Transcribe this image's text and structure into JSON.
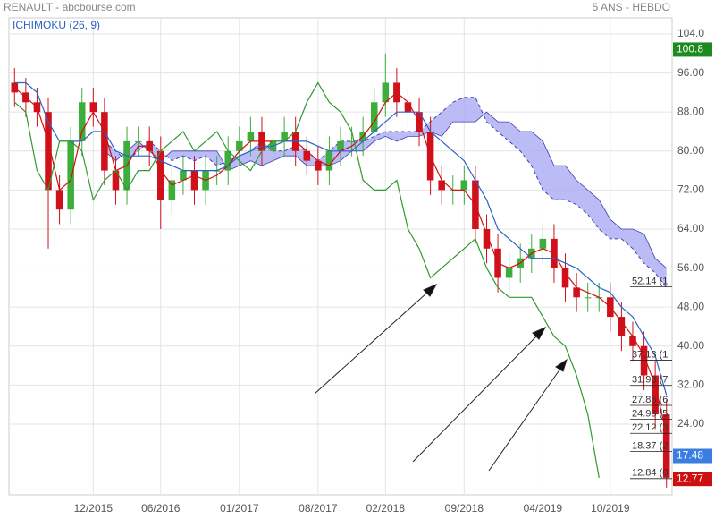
{
  "chart_data": {
    "type": "candlestick",
    "title": "RENAULT - abcbourse.com",
    "subtitle": "5 ANS - HEBDO",
    "indicator": "ICHIMOKU (26, 9)",
    "categories": [
      null,
      null,
      null,
      null,
      null,
      null,
      null,
      "12/2015",
      null,
      null,
      null,
      null,
      null,
      "06/2016",
      null,
      null,
      null,
      null,
      null,
      null,
      "01/2017",
      null,
      null,
      null,
      null,
      null,
      null,
      "08/2017",
      null,
      null,
      null,
      null,
      null,
      "02/2018",
      null,
      null,
      null,
      null,
      null,
      null,
      "09/2018",
      null,
      null,
      null,
      null,
      null,
      null,
      "04/2019",
      null,
      null,
      null,
      null,
      null,
      "10/2019",
      null,
      null,
      null,
      null,
      null
    ],
    "open": [
      94,
      92,
      90,
      88,
      72,
      68,
      82,
      90,
      88,
      76,
      72,
      82,
      82,
      80,
      70,
      74,
      76,
      72,
      76,
      76,
      80,
      82,
      84,
      80,
      82,
      84,
      80,
      78,
      76,
      80,
      82,
      82,
      84,
      90,
      94,
      90,
      88,
      84,
      74,
      72,
      72,
      74,
      64,
      60,
      54,
      56,
      58,
      60,
      62,
      56,
      52,
      50,
      50,
      50,
      46,
      42,
      40,
      34,
      26
    ],
    "high": [
      97,
      95,
      93,
      91,
      75,
      85,
      93,
      93,
      91,
      79,
      85,
      85,
      85,
      83,
      77,
      79,
      79,
      79,
      79,
      83,
      85,
      87,
      87,
      85,
      87,
      87,
      83,
      81,
      83,
      85,
      85,
      87,
      93,
      100,
      97,
      93,
      91,
      87,
      77,
      75,
      77,
      77,
      67,
      63,
      59,
      61,
      63,
      65,
      65,
      59,
      55,
      53,
      53,
      53,
      49,
      45,
      43,
      37,
      29
    ],
    "low": [
      89,
      87,
      85,
      60,
      65,
      65,
      79,
      85,
      73,
      69,
      69,
      79,
      77,
      64,
      67,
      71,
      69,
      69,
      73,
      73,
      77,
      79,
      77,
      77,
      79,
      77,
      75,
      73,
      73,
      77,
      79,
      79,
      81,
      87,
      87,
      85,
      81,
      71,
      69,
      69,
      69,
      61,
      57,
      51,
      51,
      53,
      55,
      57,
      53,
      49,
      47,
      47,
      47,
      43,
      39,
      37,
      31,
      23,
      11
    ],
    "close": [
      92,
      90,
      88,
      72,
      68,
      82,
      90,
      88,
      76,
      72,
      82,
      82,
      80,
      70,
      74,
      76,
      72,
      76,
      76,
      80,
      82,
      84,
      80,
      82,
      84,
      80,
      78,
      76,
      80,
      82,
      82,
      84,
      90,
      94,
      90,
      88,
      84,
      74,
      72,
      72,
      74,
      64,
      60,
      54,
      56,
      58,
      60,
      62,
      56,
      52,
      50,
      50,
      50,
      46,
      42,
      40,
      34,
      26,
      13
    ],
    "up_color": "#3cae3c",
    "down_color": "#d0101b",
    "lines": [
      {
        "color": "#d01010",
        "values": [
          93,
          91,
          89,
          82,
          72,
          74,
          84,
          88,
          84,
          76,
          77,
          81,
          81,
          76,
          73,
          74,
          75,
          74,
          75,
          77,
          80,
          82,
          82,
          82,
          82,
          82,
          80,
          78,
          77,
          80,
          81,
          83,
          86,
          90,
          92,
          90,
          86,
          79,
          74,
          72,
          72,
          69,
          63,
          57,
          56,
          57,
          59,
          60,
          59,
          55,
          52,
          51,
          50,
          48,
          45,
          42,
          38,
          32,
          22
        ]
      },
      {
        "color": "#2a62c8",
        "values": [
          94,
          94,
          92,
          86,
          82,
          82,
          82,
          84,
          84,
          80,
          79,
          79,
          79,
          78,
          77,
          76,
          76,
          76,
          76,
          77,
          79,
          80,
          81,
          81,
          82,
          82,
          82,
          81,
          80,
          80,
          80,
          82,
          84,
          86,
          88,
          88,
          88,
          84,
          82,
          80,
          78,
          74,
          70,
          64,
          62,
          60,
          58,
          58,
          58,
          57,
          56,
          54,
          52,
          51,
          48,
          46,
          42,
          38,
          30
        ]
      },
      {
        "color": "#2f9a2f",
        "values": [
          90,
          88,
          76,
          72,
          82,
          82,
          80,
          70,
          74,
          76,
          72,
          76,
          76,
          80,
          82,
          84,
          80,
          82,
          84,
          80,
          78,
          76,
          80,
          82,
          82,
          84,
          90,
          94,
          90,
          88,
          84,
          74,
          72,
          72,
          74,
          64,
          60,
          54,
          56,
          58,
          60,
          62,
          56,
          52,
          50,
          50,
          50,
          46,
          42,
          40,
          34,
          26,
          13,
          null,
          null,
          null,
          null,
          null,
          null
        ]
      }
    ],
    "cloud": {
      "fill": "#aaaaf4",
      "line_color": "#4040b0",
      "span_a": [
        null,
        null,
        null,
        null,
        null,
        null,
        null,
        null,
        82,
        80,
        78,
        80,
        82,
        80,
        78,
        79,
        78,
        79,
        77,
        78,
        79,
        80,
        82,
        80,
        80,
        81,
        80,
        78,
        80,
        82,
        82,
        82,
        83,
        84,
        84,
        84,
        84,
        86,
        88,
        90,
        91,
        91,
        86,
        84,
        82,
        80,
        77,
        72,
        70,
        70,
        69,
        67,
        64,
        62,
        62,
        60,
        57,
        55,
        52
      ],
      "span_b": [
        null,
        null,
        null,
        null,
        null,
        null,
        null,
        null,
        80,
        78,
        80,
        82,
        80,
        78,
        80,
        80,
        80,
        80,
        80,
        76,
        77,
        78,
        77,
        78,
        79,
        79,
        77,
        77,
        77,
        78,
        80,
        80,
        82,
        83,
        82,
        83,
        83,
        84,
        83,
        86,
        86,
        86,
        88,
        86,
        86,
        84,
        84,
        82,
        77,
        77,
        74,
        72,
        70,
        66,
        64,
        64,
        63,
        58,
        56
      ]
    },
    "ylim": [
      9.5,
      107.3
    ],
    "yticks": [
      {
        "value": 104,
        "label": "104.0"
      },
      {
        "value": 96,
        "label": "96.00"
      },
      {
        "value": 88,
        "label": "88.00"
      },
      {
        "value": 80,
        "label": "80.00"
      },
      {
        "value": 72,
        "label": "72.00"
      },
      {
        "value": 64,
        "label": "64.00"
      },
      {
        "value": 56,
        "label": "56.00"
      },
      {
        "value": 48,
        "label": "48.00"
      },
      {
        "value": 40,
        "label": "40.00"
      },
      {
        "value": 32,
        "label": "32.00"
      },
      {
        "value": 24,
        "label": "24.00"
      }
    ],
    "grid": true,
    "fib_levels": [
      {
        "value": 52.14,
        "label": "52.14 (1"
      },
      {
        "value": 37.13,
        "label": "37.13 (1"
      },
      {
        "value": 31.93,
        "label": "31.93 (7"
      },
      {
        "value": 27.85,
        "label": "27.85 (6"
      },
      {
        "value": 24.98,
        "label": "24.98 (5"
      },
      {
        "value": 22.12,
        "label": "22.12 (3"
      },
      {
        "value": 18.37,
        "label": "18.37 (2"
      },
      {
        "value": 12.84,
        "label": "12.84 (0"
      }
    ],
    "badges": [
      {
        "value": 100.8,
        "label": "100.8",
        "color": "#1d8a1d"
      },
      {
        "value": 17.48,
        "label": "17.48",
        "color": "#3a7ee0"
      },
      {
        "value": 12.77,
        "label": "12.77",
        "color": "#cc1010"
      }
    ]
  }
}
